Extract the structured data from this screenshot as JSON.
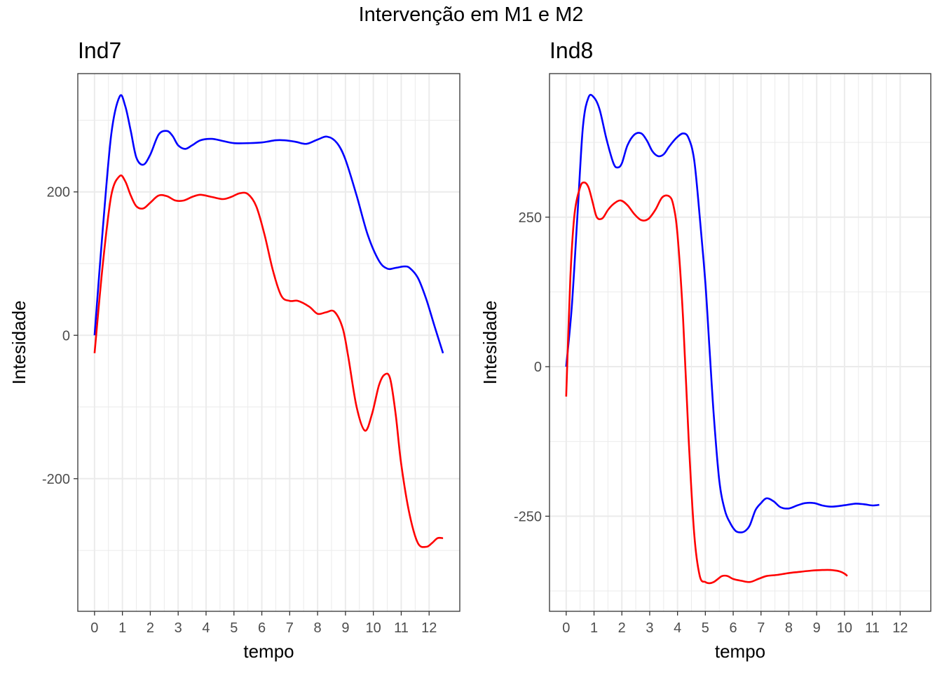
{
  "figure_title": "Intervenção em M1 e M2",
  "colors": {
    "series_a": "#0000ff",
    "series_b": "#ff0000",
    "grid": "#ebebeb",
    "panel_border": "#333333",
    "tick_text": "#4d4d4d"
  },
  "chart_data": [
    {
      "type": "line",
      "title": "Ind7",
      "xlabel": "tempo",
      "ylabel": "Intesidade",
      "xlim": [
        -0.6,
        13.1
      ],
      "ylim": [
        -385,
        365
      ],
      "x_ticks": [
        "0",
        "1",
        "2",
        "3",
        "4",
        "5",
        "6",
        "7",
        "8",
        "9",
        "10",
        "11",
        "12"
      ],
      "y_ticks": [
        "-200",
        "0",
        "200"
      ],
      "grid": true,
      "legend": "none",
      "series": [
        {
          "color": "#0000ff",
          "x": [
            0,
            0.3,
            0.6,
            0.9,
            1.1,
            1.3,
            1.5,
            1.75,
            2.0,
            2.3,
            2.6,
            2.8,
            3.0,
            3.25,
            3.5,
            3.8,
            4.2,
            4.6,
            5.0,
            5.5,
            6.0,
            6.5,
            6.8,
            7.2,
            7.6,
            8.0,
            8.35,
            8.7,
            9.0,
            9.4,
            9.8,
            10.2,
            10.5,
            10.8,
            11.1,
            11.3,
            11.6,
            11.9,
            12.2,
            12.5
          ],
          "values": [
            0,
            150,
            280,
            333,
            320,
            285,
            248,
            238,
            252,
            280,
            285,
            278,
            265,
            260,
            265,
            272,
            274,
            271,
            268,
            268,
            269,
            272,
            272,
            270,
            267,
            273,
            277,
            268,
            245,
            195,
            140,
            104,
            93,
            94,
            96,
            94,
            80,
            50,
            12,
            -25
          ]
        },
        {
          "color": "#ff0000",
          "x": [
            0,
            0.3,
            0.6,
            0.9,
            1.1,
            1.3,
            1.5,
            1.75,
            2.0,
            2.3,
            2.6,
            2.9,
            3.2,
            3.5,
            3.8,
            4.2,
            4.6,
            4.9,
            5.2,
            5.5,
            5.8,
            6.1,
            6.4,
            6.7,
            7.0,
            7.3,
            7.7,
            8.0,
            8.3,
            8.6,
            8.9,
            9.1,
            9.4,
            9.7,
            9.95,
            10.2,
            10.4,
            10.6,
            10.8,
            11.0,
            11.3,
            11.6,
            11.9,
            12.1,
            12.3,
            12.5
          ],
          "values": [
            -25,
            100,
            195,
            222,
            215,
            195,
            180,
            177,
            185,
            195,
            194,
            188,
            188,
            193,
            196,
            193,
            190,
            193,
            198,
            197,
            180,
            140,
            90,
            55,
            48,
            48,
            40,
            30,
            32,
            33,
            10,
            -30,
            -100,
            -133,
            -110,
            -70,
            -55,
            -60,
            -110,
            -180,
            -250,
            -290,
            -295,
            -290,
            -283,
            -283
          ]
        }
      ]
    },
    {
      "type": "line",
      "title": "Ind8",
      "xlabel": "tempo",
      "ylabel": "Intesidade",
      "xlim": [
        -0.6,
        13.1
      ],
      "ylim": [
        -409,
        490
      ],
      "x_ticks": [
        "0",
        "1",
        "2",
        "3",
        "4",
        "5",
        "6",
        "7",
        "8",
        "9",
        "10",
        "11",
        "12"
      ],
      "y_ticks": [
        "-250",
        "0",
        "250"
      ],
      "grid": true,
      "legend": "none",
      "series": [
        {
          "color": "#0000ff",
          "x": [
            0,
            0.2,
            0.4,
            0.6,
            0.8,
            1.0,
            1.2,
            1.45,
            1.7,
            1.85,
            2.0,
            2.2,
            2.45,
            2.7,
            2.9,
            3.1,
            3.3,
            3.5,
            3.7,
            3.95,
            4.2,
            4.4,
            4.6,
            4.8,
            5.0,
            5.15,
            5.3,
            5.5,
            5.7,
            5.9,
            6.1,
            6.3,
            6.45,
            6.6,
            6.8,
            7.0,
            7.2,
            7.45,
            7.7,
            8.0,
            8.3,
            8.6,
            8.9,
            9.2,
            9.5,
            9.8,
            10.1,
            10.4,
            10.7,
            11.0,
            11.25
          ],
          "values": [
            0,
            100,
            250,
            400,
            450,
            450,
            430,
            380,
            340,
            333,
            340,
            370,
            388,
            390,
            378,
            360,
            352,
            355,
            368,
            382,
            390,
            382,
            345,
            250,
            140,
            30,
            -80,
            -190,
            -240,
            -262,
            -275,
            -277,
            -274,
            -265,
            -240,
            -228,
            -220,
            -225,
            -235,
            -237,
            -232,
            -228,
            -228,
            -232,
            -234,
            -233,
            -231,
            -229,
            -230,
            -232,
            -231
          ]
        },
        {
          "color": "#ff0000",
          "x": [
            0,
            0.15,
            0.3,
            0.5,
            0.65,
            0.8,
            0.95,
            1.1,
            1.3,
            1.5,
            1.7,
            1.95,
            2.2,
            2.45,
            2.7,
            2.95,
            3.2,
            3.45,
            3.7,
            3.85,
            4.0,
            4.2,
            4.4,
            4.6,
            4.8,
            5.0,
            5.15,
            5.3,
            5.45,
            5.6,
            5.8,
            6.0,
            6.3,
            6.6,
            6.9,
            7.2,
            7.6,
            8.0,
            8.4,
            8.8,
            9.2,
            9.5,
            9.8,
            10.0,
            10.1
          ],
          "values": [
            -50,
            150,
            255,
            300,
            308,
            300,
            275,
            250,
            248,
            262,
            272,
            278,
            270,
            255,
            245,
            247,
            262,
            283,
            285,
            270,
            220,
            80,
            -120,
            -280,
            -350,
            -360,
            -362,
            -360,
            -355,
            -350,
            -350,
            -355,
            -358,
            -360,
            -355,
            -350,
            -348,
            -345,
            -343,
            -341,
            -340,
            -340,
            -342,
            -346,
            -350
          ]
        }
      ]
    }
  ]
}
